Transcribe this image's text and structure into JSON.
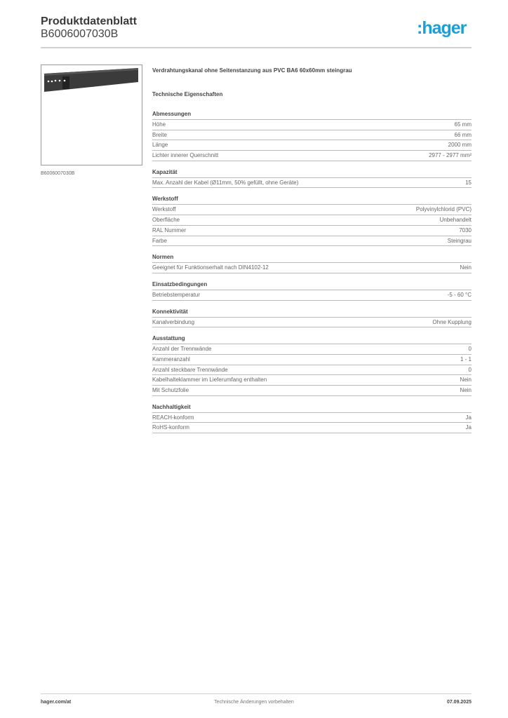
{
  "header": {
    "title": "Produktdatenblatt",
    "code": "B6006007030B",
    "logo": ":hager"
  },
  "image": {
    "caption": "B6006007030B"
  },
  "description": "Verdrahtungskanal ohne Seitenstanzung aus PVC BA6 60x60mm steingrau",
  "tech_heading": "Technische Eigenschaften",
  "sections": [
    {
      "title": "Abmessungen",
      "rows": [
        [
          "Höhe",
          "65 mm"
        ],
        [
          "Breite",
          "66 mm"
        ],
        [
          "Länge",
          "2000 mm"
        ],
        [
          "Lichter innerer Querschnitt",
          "2977 - 2977 mm²"
        ]
      ]
    },
    {
      "title": "Kapazität",
      "rows": [
        [
          "Max. Anzahl der Kabel (Ø11mm, 50% gefüllt, ohne Geräte)",
          "15"
        ]
      ]
    },
    {
      "title": "Werkstoff",
      "rows": [
        [
          "Werkstoff",
          "Polyvinylchlorid (PVC)"
        ],
        [
          "Oberfläche",
          "Unbehandelt"
        ],
        [
          "RAL Nummer",
          "7030"
        ],
        [
          "Farbe",
          "Steingrau"
        ]
      ]
    },
    {
      "title": "Normen",
      "rows": [
        [
          "Geeignet für Funktionserhalt nach DIN4102-12",
          "Nein"
        ]
      ]
    },
    {
      "title": "Einsatzbedingungen",
      "rows": [
        [
          "Betriebstemperatur",
          "-5 - 60 °C"
        ]
      ]
    },
    {
      "title": "Konnektivität",
      "rows": [
        [
          "Kanalverbindung",
          "Ohne Kupplung"
        ]
      ]
    },
    {
      "title": "Ausstattung",
      "rows": [
        [
          "Anzahl der Trennwände",
          "0"
        ],
        [
          "Kammeranzahl",
          "1 - 1"
        ],
        [
          "Anzahl steckbare Trennwände",
          "0"
        ],
        [
          "Kabelhalteklammer im Lieferumfang enthalten",
          "Nein"
        ],
        [
          "Mit Schutzfolie",
          "Nein"
        ]
      ]
    },
    {
      "title": "Nachhaltigkeit",
      "rows": [
        [
          "REACH-konform",
          "Ja"
        ],
        [
          "RoHS-konform",
          "Ja"
        ]
      ]
    }
  ],
  "footer": {
    "website": "hager.com/at",
    "notice": "Technische Änderungen vorbehalten",
    "date": "07.09.2025"
  },
  "colors": {
    "brand": "#1aa0d8"
  }
}
